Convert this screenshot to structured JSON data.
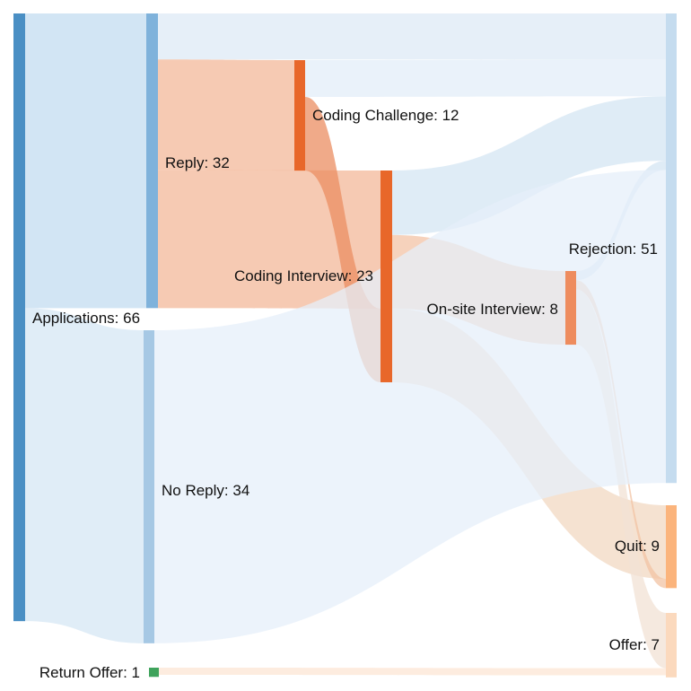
{
  "chart_data": {
    "type": "sankey",
    "title": "",
    "nodes": [
      {
        "id": "applications",
        "label": "Applications: 66",
        "name": "Applications",
        "value": 66,
        "color": "#4a8fc4"
      },
      {
        "id": "reply",
        "label": "Reply: 32",
        "name": "Reply",
        "value": 32,
        "color": "#7fb2db"
      },
      {
        "id": "no_reply",
        "label": "No Reply: 34",
        "name": "No Reply",
        "value": 34,
        "color": "#a6c8e4"
      },
      {
        "id": "return_offer",
        "label": "Return Offer: 1",
        "name": "Return Offer",
        "value": 1,
        "color": "#3fa35c"
      },
      {
        "id": "coding_challenge",
        "label": "Coding Challenge: 12",
        "name": "Coding Challenge",
        "value": 12,
        "color": "#e8672a"
      },
      {
        "id": "coding_interview",
        "label": "Coding Interview: 23",
        "name": "Coding Interview",
        "value": 23,
        "color": "#e8672a"
      },
      {
        "id": "onsite_interview",
        "label": "On-site Interview: 8",
        "name": "On-site Interview",
        "value": 8,
        "color": "#ee8c5e"
      },
      {
        "id": "rejection",
        "label": "Rejection: 51",
        "name": "Rejection",
        "value": 51,
        "color": "#c5dcef"
      },
      {
        "id": "quit",
        "label": "Quit: 9",
        "name": "Quit",
        "value": 9,
        "color": "#fbb47c"
      },
      {
        "id": "offer",
        "label": "Offer: 7",
        "name": "Offer",
        "value": 7,
        "color": "#fbd9bd"
      }
    ],
    "links": [
      {
        "source": "applications",
        "target": "reply",
        "value": 32,
        "color": "#c3dcf0"
      },
      {
        "source": "applications",
        "target": "no_reply",
        "value": 34,
        "color": "#d6e7f4"
      },
      {
        "source": "reply",
        "target": "rejection",
        "value": 5,
        "color": "#dde9f6"
      },
      {
        "source": "reply",
        "target": "coding_challenge",
        "value": 12,
        "color": "#f3b89a"
      },
      {
        "source": "reply",
        "target": "coding_interview",
        "value": 15,
        "color": "#f3b89a"
      },
      {
        "source": "coding_challenge",
        "target": "rejection",
        "value": 4,
        "color": "#e3edf8"
      },
      {
        "source": "coding_challenge",
        "target": "coding_interview",
        "value": 8,
        "color": "#eb8d62"
      },
      {
        "source": "coding_interview",
        "target": "rejection",
        "value": 7,
        "color": "#d4e6f3"
      },
      {
        "source": "coding_interview",
        "target": "onsite_interview",
        "value": 8,
        "color": "#f3c3a6"
      },
      {
        "source": "coding_interview",
        "target": "quit",
        "value": 8,
        "color": "#f1d8c2"
      },
      {
        "source": "onsite_interview",
        "target": "rejection",
        "value": 1,
        "color": "#d4e6f3"
      },
      {
        "source": "onsite_interview",
        "target": "quit",
        "value": 1,
        "color": "#f2c3a3"
      },
      {
        "source": "onsite_interview",
        "target": "offer",
        "value": 6,
        "color": "#f1e1d4"
      },
      {
        "source": "no_reply",
        "target": "rejection",
        "value": 34,
        "color": "#e6eff9"
      },
      {
        "source": "return_offer",
        "target": "offer",
        "value": 1,
        "color": "#fce6d4"
      }
    ]
  }
}
